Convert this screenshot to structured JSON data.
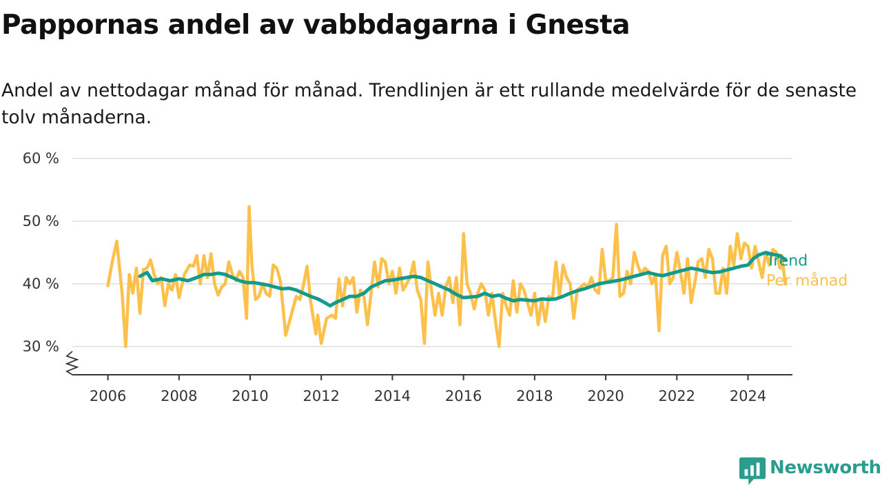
{
  "title": "Pappornas andel av vabbdagarna i Gnesta",
  "subtitle": "Andel av nettodagar månad för månad. Trendlinjen är ett rullande medelvärde för de senaste tolv månaderna.",
  "brand": "Newsworthy",
  "colors": {
    "trend": "#139a8c",
    "monthly": "#fdc04a",
    "grid": "#dddddd",
    "axis": "#333333",
    "brand": "#2a9d8f"
  },
  "icons": {
    "logo": "bar-chart-badge-icon",
    "axis_break": "zigzag-axis-break-icon"
  },
  "chart_data": {
    "type": "line",
    "ylim": [
      25.5,
      60
    ],
    "yticks": [
      {
        "value": 30,
        "label": "30 %"
      },
      {
        "value": 40,
        "label": "40 %"
      },
      {
        "value": 50,
        "label": "50 %"
      },
      {
        "value": 60,
        "label": "60 %"
      }
    ],
    "xlim": [
      2005.0,
      2025.25
    ],
    "xticks": [
      {
        "value": 2006,
        "label": "2006"
      },
      {
        "value": 2008,
        "label": "2008"
      },
      {
        "value": 2010,
        "label": "2010"
      },
      {
        "value": 2012,
        "label": "2012"
      },
      {
        "value": 2014,
        "label": "2014"
      },
      {
        "value": 2016,
        "label": "2016"
      },
      {
        "value": 2018,
        "label": "2018"
      },
      {
        "value": 2020,
        "label": "2020"
      },
      {
        "value": 2022,
        "label": "2022"
      },
      {
        "value": 2024,
        "label": "2024"
      }
    ],
    "grid": true,
    "series": [
      {
        "name": "Per månad",
        "points": [
          [
            2006.0,
            39.7
          ],
          [
            2006.12,
            43.5
          ],
          [
            2006.25,
            46.8
          ],
          [
            2006.4,
            38.5
          ],
          [
            2006.5,
            30.0
          ],
          [
            2006.6,
            41.5
          ],
          [
            2006.7,
            38.5
          ],
          [
            2006.8,
            42.5
          ],
          [
            2006.9,
            35.3
          ],
          [
            2007.0,
            42.3
          ],
          [
            2007.1,
            42.5
          ],
          [
            2007.2,
            43.8
          ],
          [
            2007.3,
            41.5
          ],
          [
            2007.4,
            40.0
          ],
          [
            2007.5,
            41.0
          ],
          [
            2007.6,
            36.5
          ],
          [
            2007.7,
            40.0
          ],
          [
            2007.8,
            39.0
          ],
          [
            2007.9,
            41.5
          ],
          [
            2008.0,
            37.8
          ],
          [
            2008.15,
            41.5
          ],
          [
            2008.3,
            43.0
          ],
          [
            2008.4,
            42.8
          ],
          [
            2008.5,
            44.5
          ],
          [
            2008.6,
            40.0
          ],
          [
            2008.7,
            44.5
          ],
          [
            2008.8,
            41.0
          ],
          [
            2008.9,
            44.8
          ],
          [
            2009.0,
            40.0
          ],
          [
            2009.1,
            38.2
          ],
          [
            2009.2,
            39.5
          ],
          [
            2009.3,
            40.0
          ],
          [
            2009.4,
            43.5
          ],
          [
            2009.5,
            41.5
          ],
          [
            2009.6,
            40.5
          ],
          [
            2009.7,
            42.0
          ],
          [
            2009.8,
            41.0
          ],
          [
            2009.9,
            34.5
          ],
          [
            2009.97,
            52.3
          ],
          [
            2010.05,
            43.0
          ],
          [
            2010.15,
            37.5
          ],
          [
            2010.25,
            38.0
          ],
          [
            2010.35,
            40.0
          ],
          [
            2010.45,
            38.5
          ],
          [
            2010.55,
            38.0
          ],
          [
            2010.65,
            43.0
          ],
          [
            2010.75,
            42.5
          ],
          [
            2010.85,
            40.5
          ],
          [
            2011.0,
            31.8
          ],
          [
            2011.2,
            36.0
          ],
          [
            2011.3,
            38.0
          ],
          [
            2011.4,
            37.5
          ],
          [
            2011.5,
            39.8
          ],
          [
            2011.6,
            42.8
          ],
          [
            2011.7,
            37.2
          ],
          [
            2011.85,
            32.0
          ],
          [
            2011.9,
            35.0
          ],
          [
            2012.0,
            30.5
          ],
          [
            2012.15,
            34.5
          ],
          [
            2012.3,
            35.0
          ],
          [
            2012.4,
            34.5
          ],
          [
            2012.5,
            40.8
          ],
          [
            2012.6,
            36.5
          ],
          [
            2012.7,
            41.0
          ],
          [
            2012.8,
            40.0
          ],
          [
            2012.9,
            41.0
          ],
          [
            2013.0,
            35.5
          ],
          [
            2013.1,
            39.0
          ],
          [
            2013.2,
            38.0
          ],
          [
            2013.3,
            33.5
          ],
          [
            2013.4,
            38.5
          ],
          [
            2013.5,
            43.5
          ],
          [
            2013.6,
            39.5
          ],
          [
            2013.7,
            44.0
          ],
          [
            2013.8,
            43.5
          ],
          [
            2013.9,
            40.0
          ],
          [
            2014.0,
            42.0
          ],
          [
            2014.1,
            38.5
          ],
          [
            2014.2,
            42.5
          ],
          [
            2014.3,
            39.0
          ],
          [
            2014.4,
            40.0
          ],
          [
            2014.5,
            41.0
          ],
          [
            2014.6,
            43.5
          ],
          [
            2014.7,
            39.0
          ],
          [
            2014.8,
            37.5
          ],
          [
            2014.9,
            30.5
          ],
          [
            2015.0,
            43.5
          ],
          [
            2015.1,
            39.0
          ],
          [
            2015.2,
            35.0
          ],
          [
            2015.3,
            38.5
          ],
          [
            2015.4,
            35.0
          ],
          [
            2015.5,
            39.5
          ],
          [
            2015.6,
            41.0
          ],
          [
            2015.7,
            37.0
          ],
          [
            2015.8,
            41.0
          ],
          [
            2015.9,
            33.5
          ],
          [
            2016.0,
            48.0
          ],
          [
            2016.1,
            40.0
          ],
          [
            2016.2,
            38.5
          ],
          [
            2016.3,
            36.0
          ],
          [
            2016.4,
            38.5
          ],
          [
            2016.5,
            40.0
          ],
          [
            2016.6,
            39.0
          ],
          [
            2016.7,
            35.0
          ],
          [
            2016.8,
            38.5
          ],
          [
            2016.9,
            34.0
          ],
          [
            2017.0,
            30.0
          ],
          [
            2017.1,
            38.5
          ],
          [
            2017.2,
            36.5
          ],
          [
            2017.3,
            35.0
          ],
          [
            2017.4,
            40.5
          ],
          [
            2017.5,
            35.5
          ],
          [
            2017.6,
            40.0
          ],
          [
            2017.7,
            39.0
          ],
          [
            2017.8,
            37.0
          ],
          [
            2017.9,
            35.0
          ],
          [
            2018.0,
            38.5
          ],
          [
            2018.1,
            33.5
          ],
          [
            2018.2,
            37.5
          ],
          [
            2018.3,
            34.0
          ],
          [
            2018.4,
            38.0
          ],
          [
            2018.5,
            37.5
          ],
          [
            2018.6,
            43.5
          ],
          [
            2018.7,
            38.0
          ],
          [
            2018.8,
            43.0
          ],
          [
            2018.9,
            41.0
          ],
          [
            2019.0,
            40.0
          ],
          [
            2019.1,
            34.5
          ],
          [
            2019.2,
            39.0
          ],
          [
            2019.3,
            39.5
          ],
          [
            2019.4,
            40.0
          ],
          [
            2019.5,
            39.5
          ],
          [
            2019.6,
            41.0
          ],
          [
            2019.7,
            39.0
          ],
          [
            2019.8,
            38.5
          ],
          [
            2019.9,
            45.5
          ],
          [
            2020.0,
            40.5
          ],
          [
            2020.1,
            40.5
          ],
          [
            2020.2,
            41.0
          ],
          [
            2020.3,
            49.5
          ],
          [
            2020.4,
            38.0
          ],
          [
            2020.5,
            38.5
          ],
          [
            2020.6,
            42.0
          ],
          [
            2020.7,
            40.0
          ],
          [
            2020.8,
            45.0
          ],
          [
            2020.9,
            43.0
          ],
          [
            2021.0,
            41.5
          ],
          [
            2021.1,
            42.5
          ],
          [
            2021.2,
            42.0
          ],
          [
            2021.3,
            40.0
          ],
          [
            2021.4,
            41.5
          ],
          [
            2021.5,
            32.5
          ],
          [
            2021.6,
            44.5
          ],
          [
            2021.7,
            46.0
          ],
          [
            2021.8,
            40.0
          ],
          [
            2021.9,
            41.0
          ],
          [
            2022.0,
            45.0
          ],
          [
            2022.1,
            42.0
          ],
          [
            2022.2,
            38.5
          ],
          [
            2022.3,
            44.0
          ],
          [
            2022.4,
            37.0
          ],
          [
            2022.5,
            40.0
          ],
          [
            2022.6,
            43.5
          ],
          [
            2022.7,
            44.0
          ],
          [
            2022.8,
            41.0
          ],
          [
            2022.9,
            45.5
          ],
          [
            2023.0,
            44.0
          ],
          [
            2023.1,
            38.5
          ],
          [
            2023.2,
            38.5
          ],
          [
            2023.3,
            42.5
          ],
          [
            2023.4,
            38.5
          ],
          [
            2023.5,
            46.0
          ],
          [
            2023.6,
            43.0
          ],
          [
            2023.7,
            48.0
          ],
          [
            2023.8,
            44.0
          ],
          [
            2023.9,
            46.5
          ],
          [
            2024.0,
            46.0
          ],
          [
            2024.1,
            42.5
          ],
          [
            2024.2,
            46.0
          ],
          [
            2024.3,
            43.5
          ],
          [
            2024.4,
            41.0
          ],
          [
            2024.5,
            45.0
          ],
          [
            2024.6,
            43.0
          ],
          [
            2024.7,
            45.5
          ],
          [
            2024.8,
            45.0
          ],
          [
            2024.9,
            42.5
          ],
          [
            2024.95,
            44.5
          ],
          [
            2025.05,
            40.0
          ]
        ]
      },
      {
        "name": "Trend",
        "points": [
          [
            2006.9,
            41.2
          ],
          [
            2007.1,
            41.8
          ],
          [
            2007.25,
            40.5
          ],
          [
            2007.5,
            40.8
          ],
          [
            2007.75,
            40.5
          ],
          [
            2008.0,
            40.8
          ],
          [
            2008.25,
            40.5
          ],
          [
            2008.5,
            41.0
          ],
          [
            2008.7,
            41.5
          ],
          [
            2008.9,
            41.5
          ],
          [
            2009.1,
            41.7
          ],
          [
            2009.3,
            41.5
          ],
          [
            2009.5,
            41.0
          ],
          [
            2009.7,
            40.5
          ],
          [
            2009.9,
            40.2
          ],
          [
            2010.1,
            40.2
          ],
          [
            2010.3,
            40.0
          ],
          [
            2010.5,
            39.8
          ],
          [
            2010.7,
            39.5
          ],
          [
            2010.9,
            39.2
          ],
          [
            2011.1,
            39.3
          ],
          [
            2011.3,
            39.0
          ],
          [
            2011.5,
            38.5
          ],
          [
            2011.7,
            38.0
          ],
          [
            2011.9,
            37.6
          ],
          [
            2012.1,
            37.0
          ],
          [
            2012.25,
            36.5
          ],
          [
            2012.4,
            37.0
          ],
          [
            2012.6,
            37.5
          ],
          [
            2012.8,
            38.0
          ],
          [
            2013.0,
            38.0
          ],
          [
            2013.2,
            38.5
          ],
          [
            2013.4,
            39.5
          ],
          [
            2013.6,
            40.0
          ],
          [
            2013.8,
            40.5
          ],
          [
            2014.0,
            40.6
          ],
          [
            2014.2,
            40.8
          ],
          [
            2014.4,
            41.0
          ],
          [
            2014.6,
            41.2
          ],
          [
            2014.8,
            41.0
          ],
          [
            2015.0,
            40.5
          ],
          [
            2015.2,
            40.0
          ],
          [
            2015.4,
            39.5
          ],
          [
            2015.6,
            39.0
          ],
          [
            2015.8,
            38.3
          ],
          [
            2016.0,
            37.8
          ],
          [
            2016.2,
            37.9
          ],
          [
            2016.4,
            38.0
          ],
          [
            2016.6,
            38.5
          ],
          [
            2016.8,
            38.0
          ],
          [
            2017.0,
            38.2
          ],
          [
            2017.2,
            37.7
          ],
          [
            2017.4,
            37.3
          ],
          [
            2017.6,
            37.5
          ],
          [
            2017.8,
            37.4
          ],
          [
            2018.0,
            37.3
          ],
          [
            2018.2,
            37.6
          ],
          [
            2018.4,
            37.5
          ],
          [
            2018.6,
            37.6
          ],
          [
            2018.8,
            38.0
          ],
          [
            2019.0,
            38.5
          ],
          [
            2019.2,
            38.9
          ],
          [
            2019.4,
            39.2
          ],
          [
            2019.6,
            39.6
          ],
          [
            2019.8,
            40.0
          ],
          [
            2020.0,
            40.2
          ],
          [
            2020.2,
            40.4
          ],
          [
            2020.4,
            40.6
          ],
          [
            2020.6,
            40.9
          ],
          [
            2020.8,
            41.2
          ],
          [
            2021.0,
            41.5
          ],
          [
            2021.2,
            41.8
          ],
          [
            2021.4,
            41.5
          ],
          [
            2021.6,
            41.3
          ],
          [
            2021.8,
            41.6
          ],
          [
            2022.0,
            41.9
          ],
          [
            2022.2,
            42.2
          ],
          [
            2022.4,
            42.5
          ],
          [
            2022.6,
            42.3
          ],
          [
            2022.8,
            42.0
          ],
          [
            2023.0,
            41.8
          ],
          [
            2023.2,
            41.9
          ],
          [
            2023.4,
            42.2
          ],
          [
            2023.6,
            42.5
          ],
          [
            2023.8,
            42.8
          ],
          [
            2024.0,
            43.0
          ],
          [
            2024.15,
            44.0
          ],
          [
            2024.3,
            44.6
          ],
          [
            2024.5,
            45.0
          ],
          [
            2024.7,
            44.7
          ],
          [
            2024.9,
            44.5
          ],
          [
            2025.05,
            43.8
          ]
        ]
      }
    ]
  }
}
